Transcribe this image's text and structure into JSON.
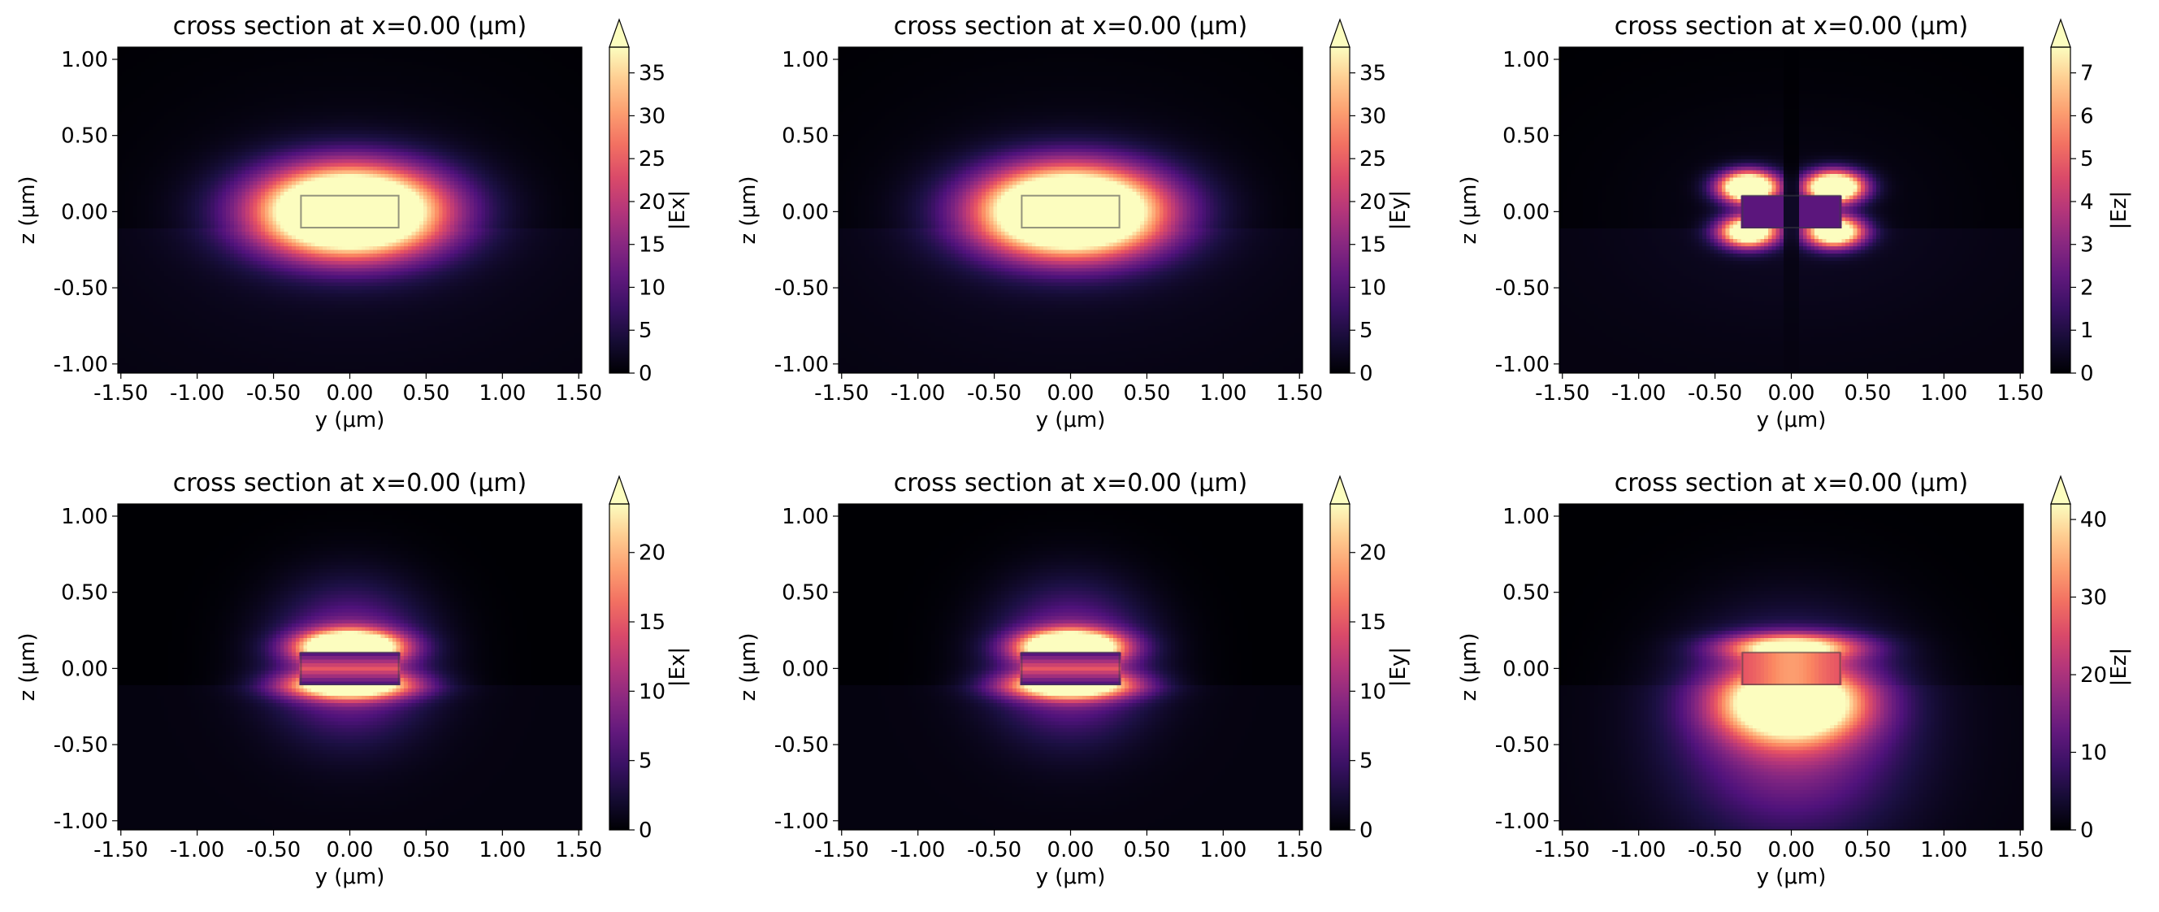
{
  "chart_data": [
    {
      "type": "heatmap",
      "title": "cross section at x=0.00 (μm)",
      "xlabel": "y (μm)",
      "ylabel": "z (μm)",
      "xlim": [
        -1.52,
        1.52
      ],
      "ylim": [
        -1.06,
        1.08
      ],
      "xticks": [
        "-1.50",
        "-1.00",
        "-0.50",
        "0.00",
        "0.50",
        "1.00",
        "1.50"
      ],
      "yticks": [
        "1.00",
        "0.50",
        "0.00",
        "-0.50",
        "-1.00"
      ],
      "colorbar": {
        "label": "|Ex|",
        "min": 0,
        "max": 38,
        "ticks": [
          0,
          5,
          10,
          15,
          20,
          25,
          30,
          35
        ],
        "extend": "max"
      },
      "colormap": "magma",
      "field": {
        "pattern": "ex1",
        "peak": 38
      }
    },
    {
      "type": "heatmap",
      "title": "cross section at x=0.00 (μm)",
      "xlabel": "y (μm)",
      "ylabel": "z (μm)",
      "xlim": [
        -1.52,
        1.52
      ],
      "ylim": [
        -1.06,
        1.08
      ],
      "xticks": [
        "-1.50",
        "-1.00",
        "-0.50",
        "0.00",
        "0.50",
        "1.00",
        "1.50"
      ],
      "yticks": [
        "1.00",
        "0.50",
        "0.00",
        "-0.50",
        "-1.00"
      ],
      "colorbar": {
        "label": "|Ey|",
        "min": 0,
        "max": 38,
        "ticks": [
          0,
          5,
          10,
          15,
          20,
          25,
          30,
          35
        ],
        "extend": "max"
      },
      "colormap": "magma",
      "field": {
        "pattern": "ex1",
        "peak": 38
      }
    },
    {
      "type": "heatmap",
      "title": "cross section at x=0.00 (μm)",
      "xlabel": "y (μm)",
      "ylabel": "z (μm)",
      "xlim": [
        -1.52,
        1.52
      ],
      "ylim": [
        -1.06,
        1.08
      ],
      "xticks": [
        "-1.50",
        "-1.00",
        "-0.50",
        "0.00",
        "0.50",
        "1.00",
        "1.50"
      ],
      "yticks": [
        "1.00",
        "0.50",
        "0.00",
        "-0.50",
        "-1.00"
      ],
      "colorbar": {
        "label": "|Ez|",
        "min": 0,
        "max": 7.6,
        "ticks": [
          0,
          1,
          2,
          3,
          4,
          5,
          6,
          7
        ],
        "extend": "max"
      },
      "colormap": "magma",
      "field": {
        "pattern": "ez1",
        "peak": 7.6
      }
    },
    {
      "type": "heatmap",
      "title": "cross section at x=0.00 (μm)",
      "xlabel": "y (μm)",
      "ylabel": "z (μm)",
      "xlim": [
        -1.52,
        1.52
      ],
      "ylim": [
        -1.06,
        1.08
      ],
      "xticks": [
        "-1.50",
        "-1.00",
        "-0.50",
        "0.00",
        "0.50",
        "1.00",
        "1.50"
      ],
      "yticks": [
        "1.00",
        "0.50",
        "0.00",
        "-0.50",
        "-1.00"
      ],
      "colorbar": {
        "label": "|Ex|",
        "min": 0,
        "max": 23.5,
        "ticks": [
          0,
          5,
          10,
          15,
          20
        ],
        "extend": "max"
      },
      "colormap": "magma",
      "field": {
        "pattern": "ex2",
        "peak": 23.5
      }
    },
    {
      "type": "heatmap",
      "title": "cross section at x=0.00 (μm)",
      "xlabel": "y (μm)",
      "ylabel": "z (μm)",
      "xlim": [
        -1.52,
        1.52
      ],
      "ylim": [
        -1.06,
        1.08
      ],
      "xticks": [
        "-1.50",
        "-1.00",
        "-0.50",
        "0.00",
        "0.50",
        "1.00",
        "1.50"
      ],
      "yticks": [
        "1.00",
        "0.50",
        "0.00",
        "-0.50",
        "-1.00"
      ],
      "colorbar": {
        "label": "|Ey|",
        "min": 0,
        "max": 23.5,
        "ticks": [
          0,
          5,
          10,
          15,
          20
        ],
        "extend": "max"
      },
      "colormap": "magma",
      "field": {
        "pattern": "ex2",
        "peak": 23.5
      }
    },
    {
      "type": "heatmap",
      "title": "cross section at x=0.00 (μm)",
      "xlabel": "y (μm)",
      "ylabel": "z (μm)",
      "xlim": [
        -1.52,
        1.52
      ],
      "ylim": [
        -1.06,
        1.08
      ],
      "xticks": [
        "-1.50",
        "-1.00",
        "-0.50",
        "0.00",
        "0.50",
        "1.00",
        "1.50"
      ],
      "yticks": [
        "1.00",
        "0.50",
        "0.00",
        "-0.50",
        "-1.00"
      ],
      "colorbar": {
        "label": "|Ez|",
        "min": 0,
        "max": 42,
        "ticks": [
          0,
          10,
          20,
          30,
          40
        ],
        "extend": "max"
      },
      "colormap": "magma",
      "field": {
        "pattern": "ez2",
        "peak": 42
      }
    }
  ]
}
